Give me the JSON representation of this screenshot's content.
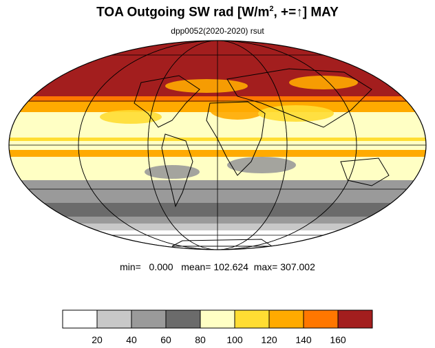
{
  "title": {
    "main": "TOA Outgoing SW rad [W/m",
    "superscript": "2",
    "suffix": ", +=↑] MAY"
  },
  "subtitle": "dpp0052(2020-2020)    rsut",
  "stats": {
    "min_label": "min=",
    "min": "0.000",
    "mean_label": "mean=",
    "mean": "102.624",
    "max_label": "max=",
    "max": "307.002"
  },
  "colorbar": {
    "ticks": [
      "20",
      "40",
      "60",
      "80",
      "100",
      "120",
      "140",
      "160"
    ],
    "colors": [
      "#ffffff",
      "#c8c8c8",
      "#9a9a9a",
      "#6b6b6b",
      "#ffffc4",
      "#ffdd33",
      "#ffaa00",
      "#ff7700",
      "#a31e1e"
    ]
  },
  "map": {
    "projection": "Mollweide",
    "bands": [
      {
        "color": "#a31e1e"
      },
      {
        "color": "#ff7700"
      },
      {
        "color": "#ffaa00"
      },
      {
        "color": "#ffffc4"
      },
      {
        "color": "#ffdd33"
      },
      {
        "color": "#ffffc4"
      },
      {
        "color": "#ffaa00"
      },
      {
        "color": "#ffffc4"
      },
      {
        "color": "#9a9a9a"
      },
      {
        "color": "#6b6b6b"
      },
      {
        "color": "#9a9a9a"
      },
      {
        "color": "#c8c8c8"
      },
      {
        "color": "#ffffff"
      }
    ]
  }
}
